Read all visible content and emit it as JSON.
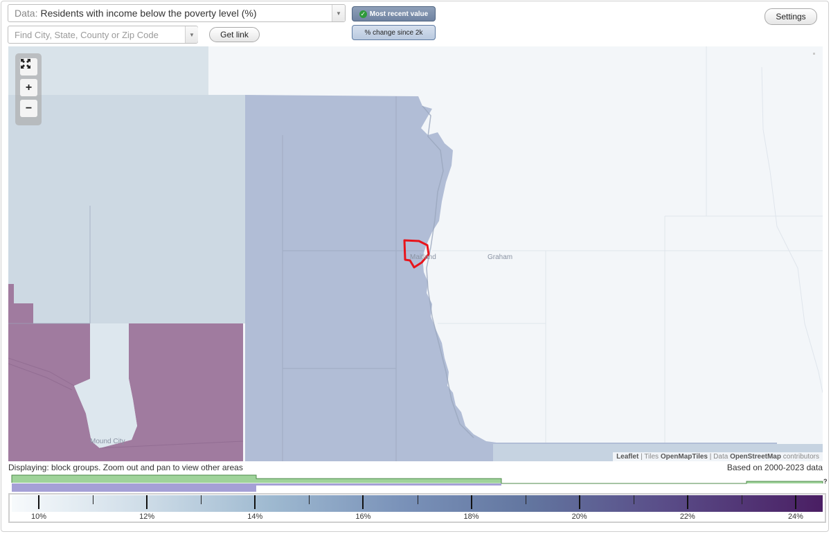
{
  "data_select": {
    "prefix": "Data:",
    "value": "Residents with income below the poverty level (%)"
  },
  "search": {
    "placeholder": "Find City, State, County or Zip Code"
  },
  "buttons": {
    "get_link": "Get link",
    "settings": "Settings"
  },
  "toggles": {
    "most_recent": "Most recent value",
    "pct_change": "% change since 2k"
  },
  "map": {
    "places": [
      "Maitland",
      "Graham",
      "Mound City"
    ],
    "attribution": {
      "leaflet": "Leaflet",
      "tiles_label": "Tiles",
      "tiles": "OpenMapTiles",
      "data_label": "Data",
      "data": "OpenStreetMap",
      "contributors": "contributors"
    },
    "colors": {
      "light_tract": "#cdd9e3",
      "mid_tract": "#a8b4d0",
      "high_tract": "#a07b9f",
      "selection": "#e8141b"
    }
  },
  "status": {
    "displaying": "Displaying: block groups. Zoom out and pan to view other areas",
    "based_on": "Based on 2000-2023 data"
  },
  "legend": {
    "min": 9.5,
    "max": 24.5,
    "labels": [
      "10%",
      "12%",
      "14%",
      "16%",
      "18%",
      "20%",
      "22%",
      "24%"
    ],
    "major_values": [
      10,
      12,
      14,
      16,
      18,
      20,
      22,
      24
    ],
    "minor_values": [
      11,
      13,
      15,
      17,
      19,
      21,
      23
    ]
  },
  "histogram": {
    "help": "?"
  }
}
